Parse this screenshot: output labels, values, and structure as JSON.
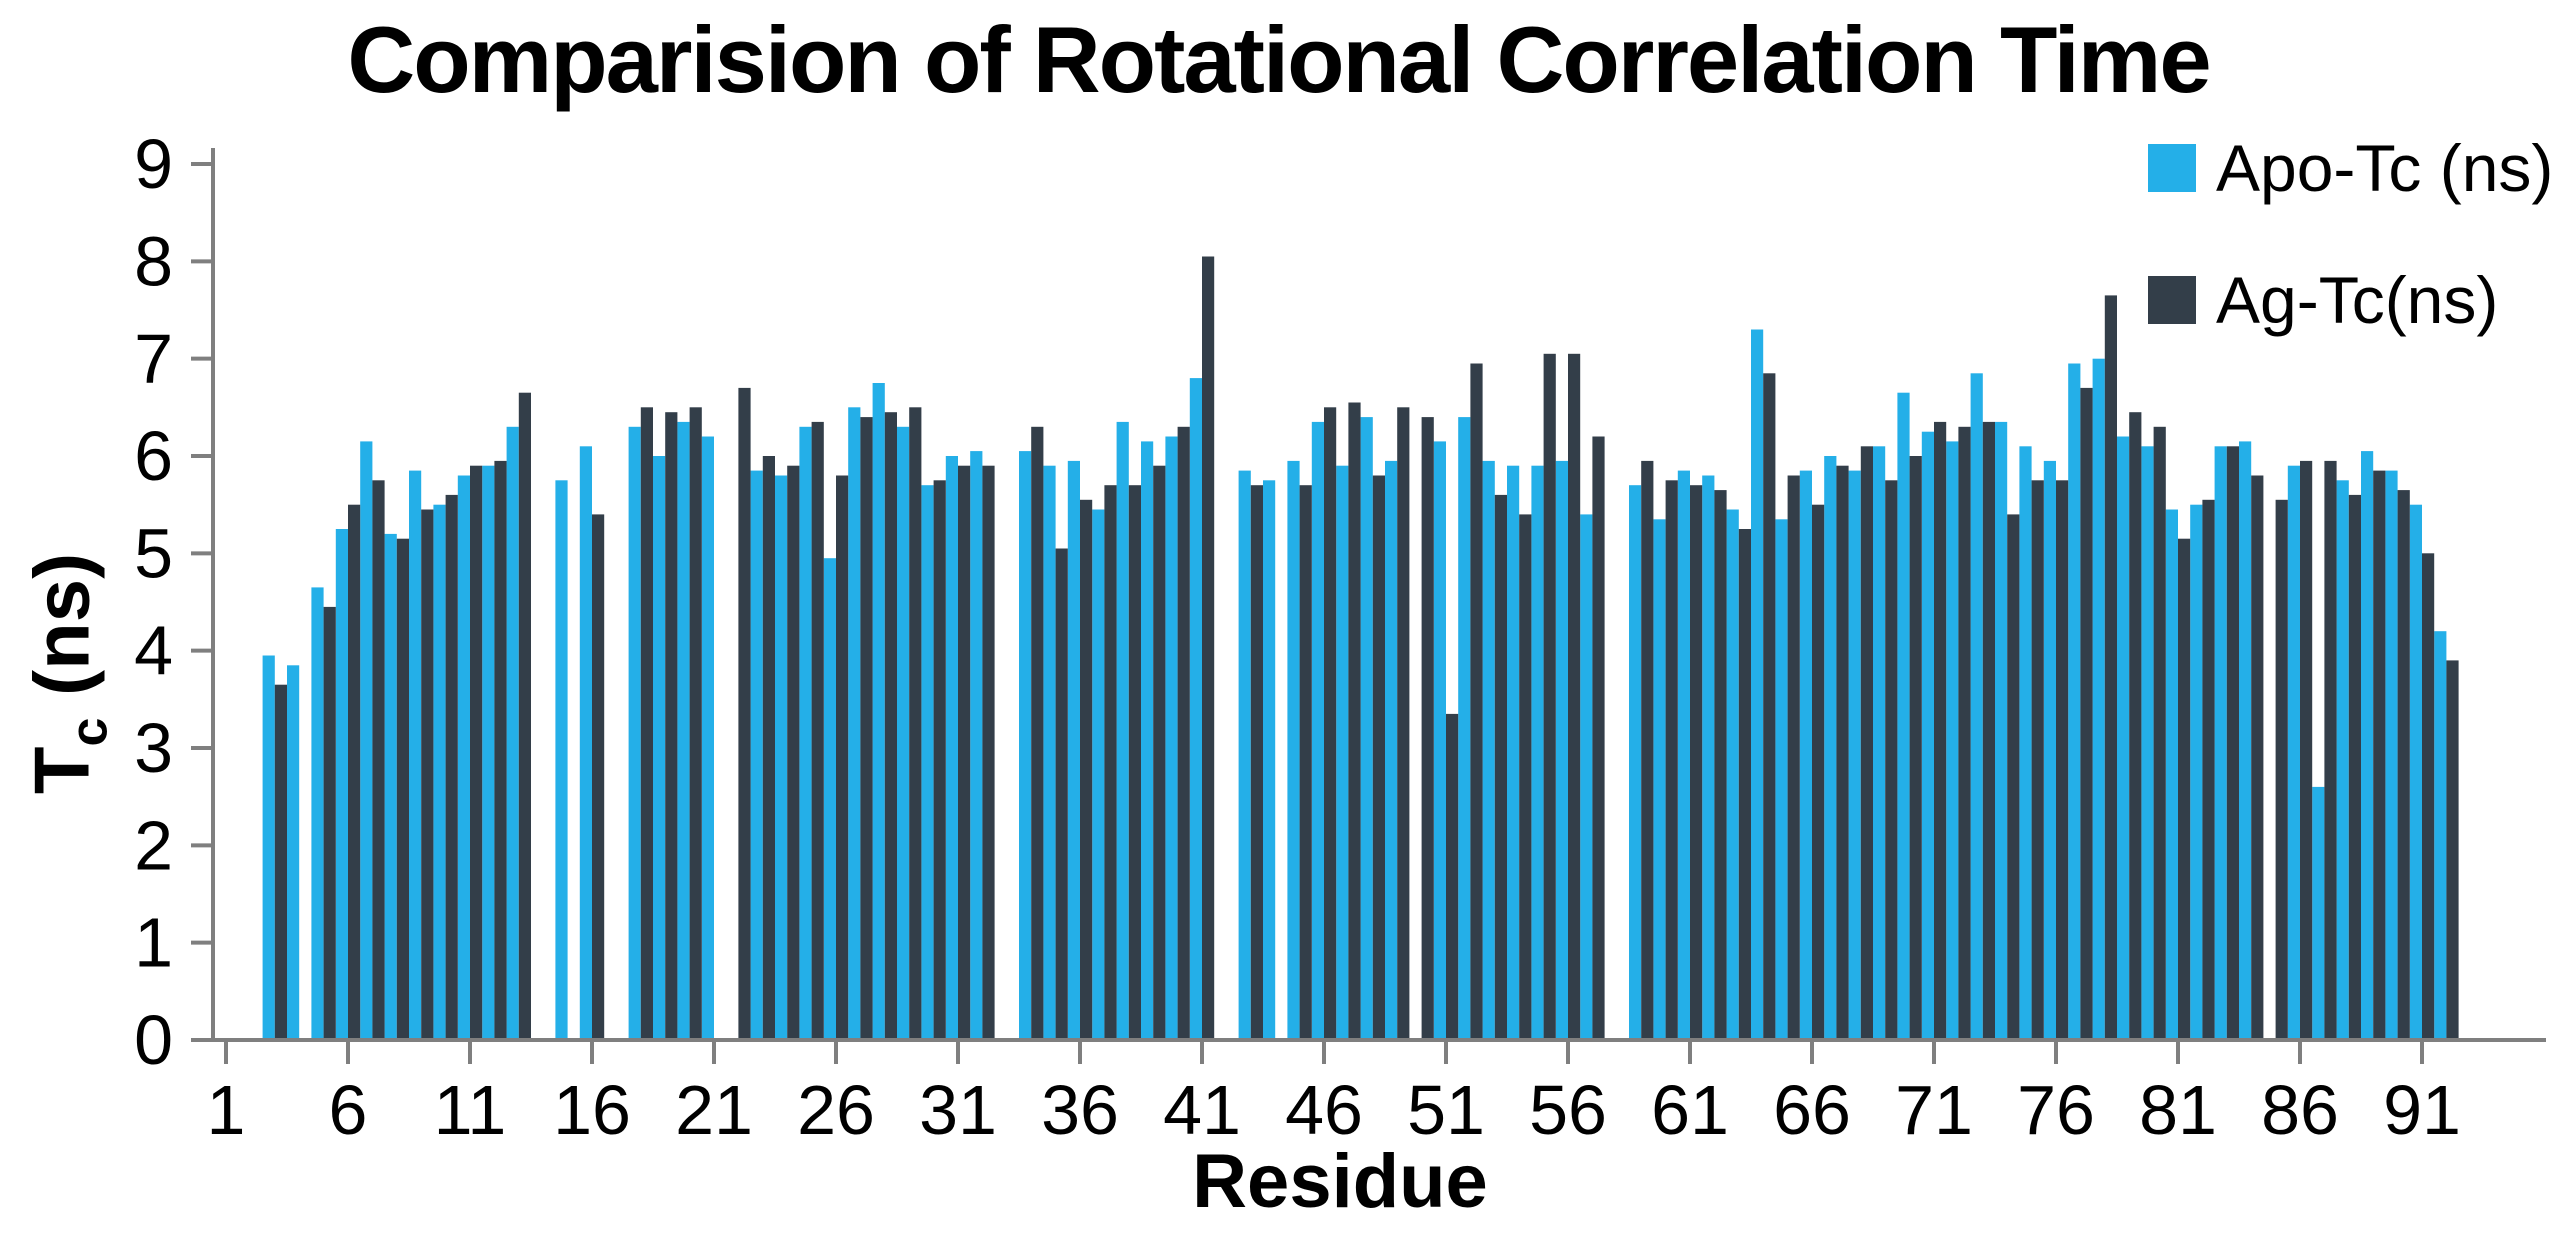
{
  "chart_data": {
    "type": "bar",
    "title": "Comparision of Rotational Correlation Time",
    "xlabel": "Residue",
    "ylabel": "Tc (ns)",
    "ylabel_parts": {
      "main": "T",
      "sub": "c",
      "rest": " (ns)"
    },
    "ylim": [
      0,
      9
    ],
    "yticks": [
      0,
      1,
      2,
      3,
      4,
      5,
      6,
      7,
      8,
      9
    ],
    "xticks": [
      1,
      6,
      11,
      16,
      21,
      26,
      31,
      36,
      41,
      46,
      51,
      56,
      61,
      66,
      71,
      76,
      81,
      86,
      91
    ],
    "x_range": [
      1,
      92
    ],
    "grid": false,
    "legend_position": "top-right",
    "axis_color": "#7f7f7f",
    "series": [
      {
        "name": "Apo-Tc (ns)",
        "color": "#24AFE8",
        "values": [
          null,
          null,
          3.95,
          3.85,
          4.65,
          5.25,
          6.15,
          5.2,
          5.85,
          5.5,
          5.8,
          5.9,
          6.3,
          null,
          5.75,
          6.1,
          null,
          6.3,
          6.0,
          6.35,
          6.2,
          null,
          5.85,
          5.8,
          6.3,
          4.95,
          6.5,
          6.75,
          6.3,
          5.7,
          6.0,
          6.05,
          null,
          6.05,
          5.9,
          5.95,
          5.45,
          6.35,
          6.15,
          6.2,
          6.8,
          null,
          5.85,
          5.75,
          5.95,
          6.35,
          5.9,
          6.4,
          5.95,
          null,
          6.15,
          6.4,
          5.95,
          5.9,
          5.9,
          5.95,
          5.4,
          null,
          5.7,
          5.35,
          5.85,
          5.8,
          5.45,
          7.3,
          5.35,
          5.85,
          6.0,
          5.85,
          6.1,
          6.65,
          6.25,
          6.15,
          6.85,
          6.35,
          6.1,
          5.95,
          6.95,
          7.0,
          6.2,
          6.1,
          5.45,
          5.5,
          6.1,
          6.15,
          null,
          5.9,
          2.6,
          5.75,
          6.05,
          5.85,
          5.5,
          4.2
        ]
      },
      {
        "name": "Ag-Tc(ns)",
        "color": "#333E49",
        "values": [
          null,
          null,
          3.65,
          null,
          4.45,
          5.5,
          5.75,
          5.15,
          5.45,
          5.6,
          5.9,
          5.95,
          6.65,
          null,
          null,
          5.4,
          null,
          6.5,
          6.45,
          6.5,
          null,
          6.7,
          6.0,
          5.9,
          6.35,
          5.8,
          6.4,
          6.45,
          6.5,
          5.75,
          5.9,
          5.9,
          null,
          6.3,
          5.05,
          5.55,
          5.7,
          5.7,
          5.9,
          6.3,
          8.05,
          null,
          5.7,
          null,
          5.7,
          6.5,
          6.55,
          5.8,
          6.5,
          6.4,
          3.35,
          6.95,
          5.6,
          5.4,
          7.05,
          7.05,
          6.2,
          null,
          5.95,
          5.75,
          5.7,
          5.65,
          5.25,
          6.85,
          5.8,
          5.5,
          5.9,
          6.1,
          5.75,
          6.0,
          6.35,
          6.3,
          6.35,
          5.4,
          5.75,
          5.75,
          6.7,
          7.65,
          6.45,
          6.3,
          5.15,
          5.55,
          6.1,
          5.8,
          5.55,
          5.95,
          5.95,
          5.6,
          5.85,
          5.65,
          5.0,
          3.9
        ]
      }
    ]
  }
}
